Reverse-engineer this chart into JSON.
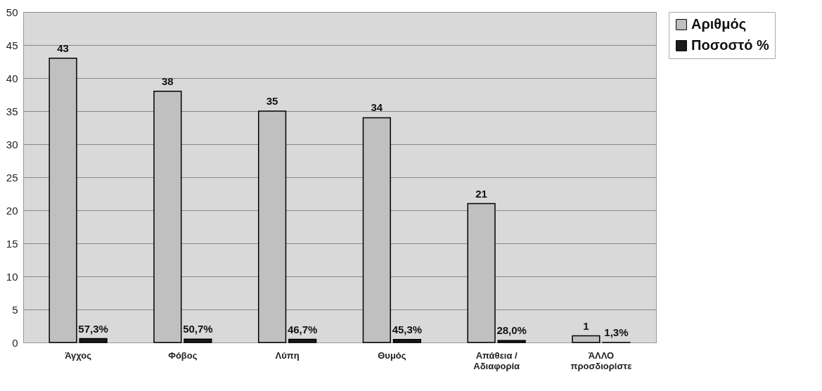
{
  "chart_data": {
    "type": "bar",
    "categories": [
      "Άγχος",
      "Φόβος",
      "Λύπη",
      "Θυμός",
      "Απάθεια / Αδιαφορία",
      "ΆΛΛΟ προσδιορίστε"
    ],
    "series": [
      {
        "name": "Αριθμός",
        "color": "#c0c0c0",
        "values": [
          43,
          38,
          35,
          34,
          21,
          1
        ],
        "value_labels": [
          "43",
          "38",
          "35",
          "34",
          "21",
          "1"
        ]
      },
      {
        "name": "Ποσοστό %",
        "color": "#1a1a1a",
        "values": [
          0.573,
          0.507,
          0.467,
          0.453,
          0.28,
          0.013
        ],
        "value_labels": [
          "57,3%",
          "50,7%",
          "46,7%",
          "45,3%",
          "28,0%",
          "1,3%"
        ]
      }
    ],
    "ylim": [
      0,
      50
    ],
    "yticks": [
      0,
      5,
      10,
      15,
      20,
      25,
      30,
      35,
      40,
      45,
      50
    ],
    "grid": "y",
    "legend": "right"
  }
}
